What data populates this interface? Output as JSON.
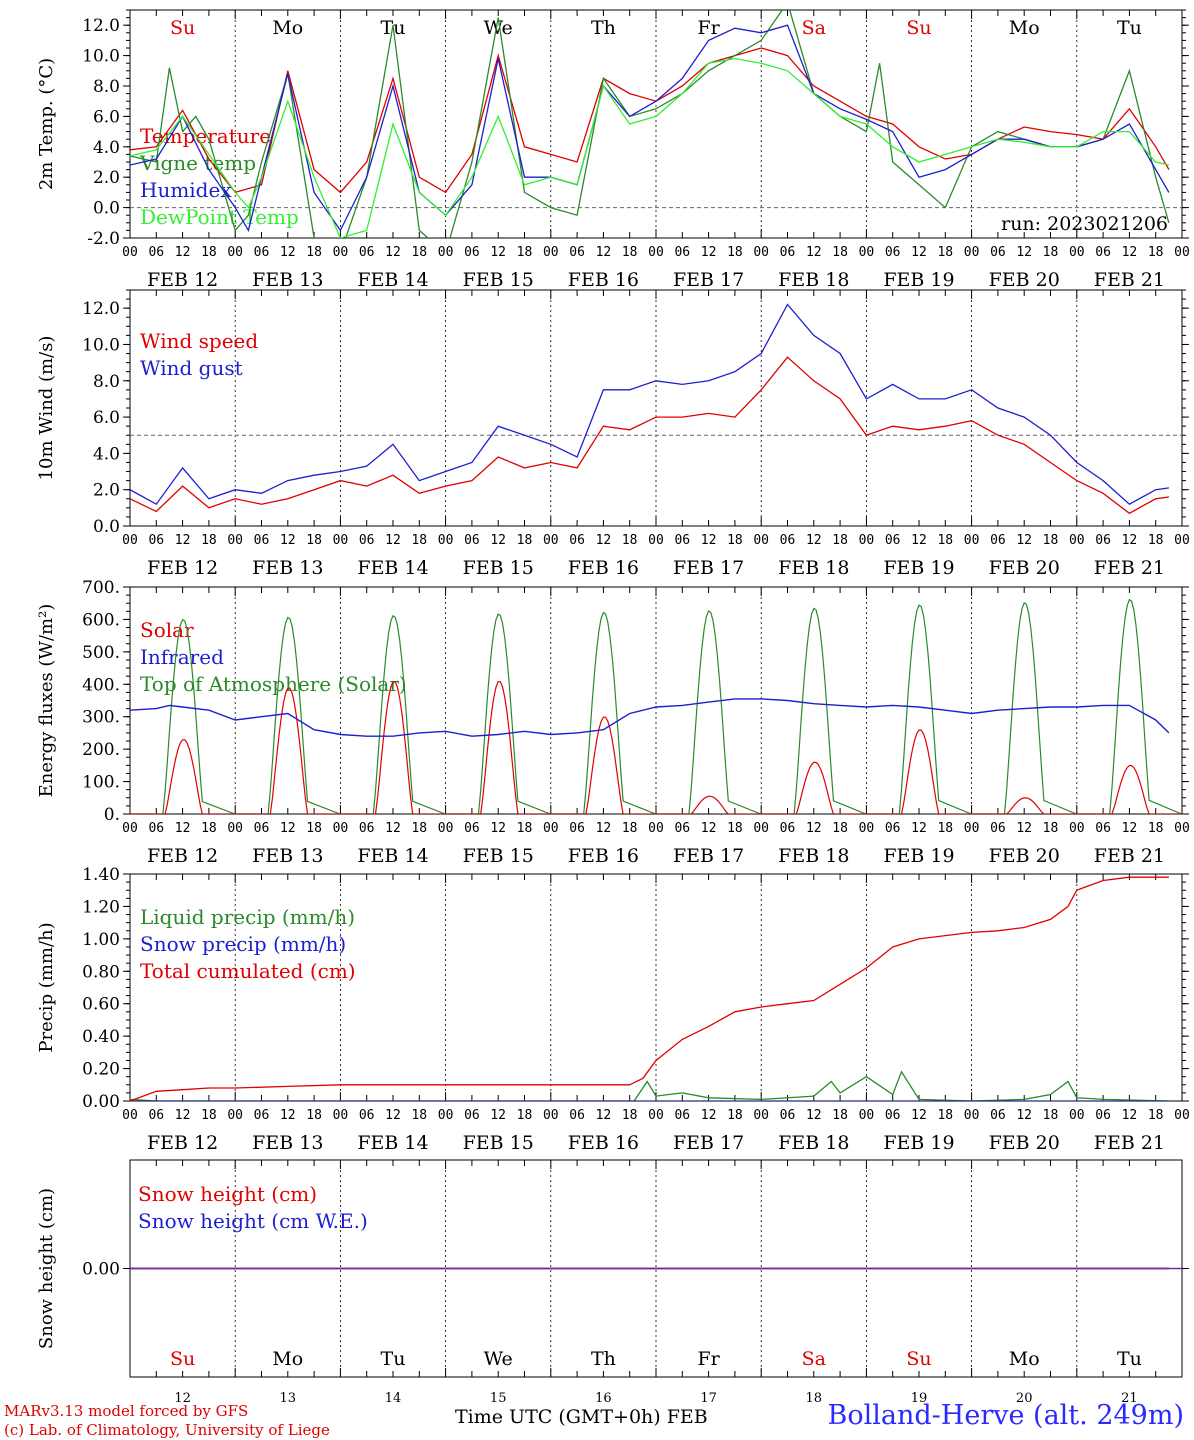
{
  "chart_data": [
    {
      "type": "line",
      "title": "",
      "ylabel": "2m Temp. (°C)",
      "ylim": [
        -2,
        13
      ],
      "yticks": [
        "-2.0",
        "0.0",
        "2.0",
        "4.0",
        "6.0",
        "8.0",
        "10.0",
        "12.0"
      ],
      "ytick_values": [
        -2,
        0,
        2,
        4,
        6,
        8,
        10,
        12
      ],
      "reference_line": 0,
      "annotation": "run: 2023021206",
      "days": [
        "Su",
        "Mo",
        "Tu",
        "We",
        "Th",
        "Fr",
        "Sa",
        "Su",
        "Mo",
        "Tu"
      ],
      "day_colors": [
        "#e00000",
        "#000000",
        "#000000",
        "#000000",
        "#000000",
        "#000000",
        "#e00000",
        "#e00000",
        "#000000",
        "#000000"
      ],
      "x_unit": "hours since FEB 12 00 UTC",
      "series": [
        {
          "name": "Temperature",
          "color": "#e00000",
          "x": [
            0,
            6,
            12,
            18,
            24,
            30,
            36,
            42,
            48,
            54,
            60,
            66,
            72,
            78,
            84,
            90,
            96,
            102,
            108,
            114,
            120,
            126,
            132,
            138,
            144,
            150,
            156,
            162,
            168,
            174,
            180,
            186,
            192,
            198,
            204,
            210,
            216,
            222,
            228,
            234,
            237
          ],
          "values": [
            3.8,
            4.0,
            6.4,
            3.2,
            1.0,
            1.5,
            9.0,
            2.5,
            1.0,
            3.0,
            8.5,
            2.0,
            1.0,
            3.5,
            10.0,
            4.0,
            3.5,
            3.0,
            8.5,
            7.5,
            7.0,
            8.0,
            9.5,
            10.0,
            10.5,
            10.0,
            8.0,
            7.0,
            6.0,
            5.5,
            4.0,
            3.2,
            3.5,
            4.5,
            5.3,
            5.0,
            4.8,
            4.5,
            6.5,
            4.0,
            2.5
          ]
        },
        {
          "name": "Vigne temp",
          "color": "#2a8a2a",
          "x": [
            0,
            6,
            9,
            12,
            15,
            18,
            24,
            27,
            30,
            36,
            42,
            48,
            54,
            60,
            66,
            72,
            78,
            84,
            90,
            96,
            102,
            108,
            114,
            120,
            126,
            132,
            138,
            144,
            150,
            156,
            162,
            168,
            171,
            174,
            180,
            186,
            192,
            198,
            204,
            210,
            216,
            222,
            228,
            234,
            237
          ],
          "values": [
            3.4,
            3.0,
            9.2,
            5.0,
            6.0,
            4.5,
            -1.5,
            -0.5,
            3.0,
            8.8,
            -2.0,
            -3.0,
            2.0,
            12.0,
            -1.5,
            -3.0,
            3.0,
            12.5,
            1.0,
            0.0,
            -0.5,
            8.5,
            6.0,
            6.5,
            7.5,
            9.0,
            10.0,
            11.0,
            13.5,
            7.5,
            6.0,
            5.0,
            9.5,
            3.0,
            1.5,
            0.0,
            4.0,
            5.0,
            4.5,
            4.0,
            4.0,
            4.5,
            9.0,
            2.0,
            -1.0
          ]
        },
        {
          "name": "Humidex",
          "color": "#1e1ed0",
          "x": [
            0,
            6,
            12,
            18,
            24,
            27,
            30,
            36,
            42,
            48,
            54,
            60,
            66,
            72,
            78,
            84,
            90,
            96,
            102,
            108,
            114,
            120,
            126,
            132,
            138,
            144,
            150,
            156,
            162,
            168,
            174,
            180,
            186,
            192,
            198,
            204,
            210,
            216,
            222,
            228,
            234,
            237
          ],
          "values": [
            2.8,
            3.2,
            6.0,
            2.5,
            0.0,
            -1.5,
            2.0,
            8.8,
            1.0,
            -1.5,
            2.0,
            8.0,
            1.0,
            -0.5,
            1.5,
            9.8,
            2.0,
            2.0,
            1.5,
            8.0,
            6.0,
            7.0,
            8.5,
            11.0,
            11.8,
            11.5,
            12.0,
            7.5,
            6.5,
            5.8,
            5.0,
            2.0,
            2.5,
            3.5,
            4.5,
            4.5,
            4.0,
            4.0,
            4.5,
            5.5,
            2.5,
            1.0
          ]
        },
        {
          "name": "DewPoint Temp",
          "color": "#33ee33",
          "x": [
            0,
            6,
            12,
            18,
            24,
            27,
            30,
            36,
            42,
            48,
            54,
            60,
            66,
            72,
            78,
            84,
            90,
            96,
            102,
            108,
            114,
            120,
            126,
            132,
            138,
            144,
            150,
            156,
            162,
            168,
            174,
            180,
            186,
            192,
            198,
            204,
            210,
            216,
            222,
            228,
            234,
            237
          ],
          "values": [
            3.4,
            3.8,
            6.0,
            3.5,
            1.0,
            0.0,
            2.0,
            7.0,
            2.0,
            -2.0,
            -1.5,
            5.5,
            1.0,
            -0.5,
            2.0,
            6.0,
            1.5,
            2.0,
            1.5,
            8.0,
            5.5,
            6.0,
            7.5,
            9.5,
            9.8,
            9.5,
            9.0,
            7.5,
            6.0,
            5.5,
            4.0,
            3.0,
            3.5,
            4.0,
            4.5,
            4.3,
            4.0,
            4.0,
            5.0,
            5.0,
            3.0,
            2.8
          ]
        }
      ]
    },
    {
      "type": "line",
      "title": "",
      "ylabel": "10m Wind (m/s)",
      "ylim": [
        0,
        13
      ],
      "yticks": [
        "0.0",
        "2.0",
        "4.0",
        "6.0",
        "8.0",
        "10.0",
        "12.0"
      ],
      "ytick_values": [
        0,
        2,
        4,
        6,
        8,
        10,
        12
      ],
      "reference_line": 5,
      "x_unit": "hours since FEB 12 00 UTC",
      "series": [
        {
          "name": "Wind speed",
          "color": "#e00000",
          "x": [
            0,
            6,
            12,
            18,
            24,
            30,
            36,
            42,
            48,
            54,
            60,
            66,
            72,
            78,
            84,
            90,
            96,
            102,
            108,
            114,
            120,
            126,
            132,
            138,
            144,
            150,
            156,
            162,
            168,
            174,
            180,
            186,
            192,
            198,
            204,
            210,
            216,
            222,
            228,
            234,
            237
          ],
          "values": [
            1.5,
            0.8,
            2.2,
            1.0,
            1.5,
            1.2,
            1.5,
            2.0,
            2.5,
            2.2,
            2.8,
            1.8,
            2.2,
            2.5,
            3.8,
            3.2,
            3.5,
            3.2,
            5.5,
            5.3,
            6.0,
            6.0,
            6.2,
            6.0,
            7.5,
            9.3,
            8.0,
            7.0,
            5.0,
            5.5,
            5.3,
            5.5,
            5.8,
            5.0,
            4.5,
            3.5,
            2.5,
            1.8,
            0.7,
            1.5,
            1.6
          ]
        },
        {
          "name": "Wind gust",
          "color": "#1e1ed0",
          "x": [
            0,
            6,
            12,
            18,
            24,
            30,
            36,
            42,
            48,
            54,
            60,
            66,
            72,
            78,
            84,
            90,
            96,
            102,
            108,
            114,
            120,
            126,
            132,
            138,
            144,
            150,
            156,
            162,
            168,
            174,
            180,
            186,
            192,
            198,
            204,
            210,
            216,
            222,
            228,
            234,
            237
          ],
          "values": [
            2.0,
            1.2,
            3.2,
            1.5,
            2.0,
            1.8,
            2.5,
            2.8,
            3.0,
            3.3,
            4.5,
            2.5,
            3.0,
            3.5,
            5.5,
            5.0,
            4.5,
            3.8,
            7.5,
            7.5,
            8.0,
            7.8,
            8.0,
            8.5,
            9.5,
            12.2,
            10.5,
            9.5,
            7.0,
            7.8,
            7.0,
            7.0,
            7.5,
            6.5,
            6.0,
            5.0,
            3.5,
            2.5,
            1.2,
            2.0,
            2.1
          ]
        }
      ]
    },
    {
      "type": "line",
      "title": "",
      "ylabel": "Energy fluxes (W/m²)",
      "ylim": [
        0,
        700
      ],
      "yticks": [
        "0.",
        "100.",
        "200.",
        "300.",
        "400.",
        "500.",
        "600.",
        "700."
      ],
      "ytick_values": [
        0,
        100,
        200,
        300,
        400,
        500,
        600,
        700
      ],
      "x_unit": "hours since FEB 12 00 UTC",
      "toa_peaks": [
        600,
        607,
        612,
        617,
        622,
        627,
        635,
        645,
        652,
        662
      ],
      "solar_peaks": [
        230,
        390,
        410,
        410,
        300,
        55,
        160,
        260,
        50,
        150
      ],
      "series": [
        {
          "name": "Solar",
          "color": "#e00000"
        },
        {
          "name": "Infrared",
          "color": "#1e1ed0",
          "x": [
            0,
            6,
            9,
            12,
            18,
            24,
            30,
            36,
            42,
            48,
            54,
            60,
            66,
            72,
            78,
            84,
            90,
            96,
            102,
            108,
            114,
            120,
            126,
            132,
            138,
            144,
            150,
            156,
            162,
            168,
            174,
            180,
            186,
            192,
            198,
            204,
            210,
            216,
            222,
            228,
            234,
            237
          ],
          "values": [
            320,
            325,
            335,
            330,
            320,
            290,
            300,
            310,
            260,
            245,
            240,
            240,
            250,
            255,
            240,
            245,
            255,
            245,
            250,
            260,
            310,
            330,
            335,
            345,
            355,
            355,
            350,
            340,
            335,
            330,
            335,
            330,
            320,
            310,
            320,
            325,
            330,
            330,
            335,
            335,
            290,
            250
          ]
        },
        {
          "name": "Top of Atmosphere (Solar)",
          "color": "#2a8a2a"
        }
      ]
    },
    {
      "type": "line",
      "title": "",
      "ylabel": "Precip (mm/h)",
      "ylim": [
        0,
        1.4
      ],
      "yticks": [
        "0.00",
        "0.20",
        "0.40",
        "0.60",
        "0.80",
        "1.00",
        "1.20",
        "1.40"
      ],
      "ytick_values": [
        0,
        0.2,
        0.4,
        0.6,
        0.8,
        1.0,
        1.2,
        1.4
      ],
      "x_unit": "hours since FEB 12 00 UTC",
      "series": [
        {
          "name": "Liquid precip (mm/h)",
          "color": "#2a8a2a",
          "x": [
            0,
            6,
            24,
            60,
            96,
            115,
            118,
            120,
            126,
            132,
            144,
            156,
            160,
            162,
            168,
            174,
            176,
            180,
            192,
            204,
            210,
            214,
            216,
            222,
            237
          ],
          "values": [
            0.01,
            0.0,
            0.0,
            0.0,
            0.0,
            0.0,
            0.12,
            0.03,
            0.05,
            0.02,
            0.01,
            0.03,
            0.12,
            0.05,
            0.15,
            0.04,
            0.18,
            0.01,
            0.0,
            0.01,
            0.04,
            0.12,
            0.02,
            0.01,
            0.0
          ]
        },
        {
          "name": "Snow precip (mm/h)",
          "color": "#1e1ed0",
          "x": [
            0,
            237
          ],
          "values": [
            0,
            0
          ]
        },
        {
          "name": "Total cumulated (cm)",
          "color": "#e00000",
          "x": [
            0,
            6,
            12,
            18,
            24,
            36,
            48,
            72,
            96,
            114,
            117,
            120,
            126,
            132,
            138,
            144,
            150,
            156,
            162,
            168,
            174,
            180,
            186,
            192,
            198,
            204,
            210,
            214,
            216,
            222,
            228,
            237
          ],
          "values": [
            0.0,
            0.06,
            0.07,
            0.08,
            0.08,
            0.09,
            0.1,
            0.1,
            0.1,
            0.1,
            0.14,
            0.25,
            0.38,
            0.46,
            0.55,
            0.58,
            0.6,
            0.62,
            0.72,
            0.82,
            0.95,
            1.0,
            1.02,
            1.04,
            1.05,
            1.07,
            1.12,
            1.2,
            1.3,
            1.36,
            1.38,
            1.38
          ]
        }
      ]
    },
    {
      "type": "line",
      "title": "",
      "ylabel": "Snow height (cm)",
      "ylim": [
        -1,
        1
      ],
      "yticks": [
        "0.00"
      ],
      "ytick_values": [
        0
      ],
      "x_unit": "hours since FEB 12 00 UTC",
      "series": [
        {
          "name": "Snow height (cm)",
          "color": "#e00000",
          "x": [
            0,
            237
          ],
          "values": [
            0,
            0
          ]
        },
        {
          "name": "Snow height (cm W.E.)",
          "color": "#1e1ed0",
          "x": [
            0,
            237
          ],
          "values": [
            0,
            0
          ]
        }
      ],
      "day_numbers": [
        "12",
        "13",
        "14",
        "15",
        "16",
        "17",
        "18",
        "19",
        "20",
        "21"
      ]
    }
  ],
  "x_axis": {
    "hour_labels": [
      "00",
      "06",
      "12",
      "18"
    ],
    "final_label": "00",
    "date_labels": [
      "FEB 12",
      "FEB 13",
      "FEB 14",
      "FEB 15",
      "FEB 16",
      "FEB 17",
      "FEB 18",
      "FEB 19",
      "FEB 20",
      "FEB 21"
    ]
  },
  "footer": {
    "model_line": "MARv3.13 model forced by GFS",
    "credit_line": "(c) Lab. of Climatology, University of Liege",
    "time_label": "Time UTC (GMT+0h) FEB",
    "station": "Bolland-Herve (alt. 249m)"
  }
}
